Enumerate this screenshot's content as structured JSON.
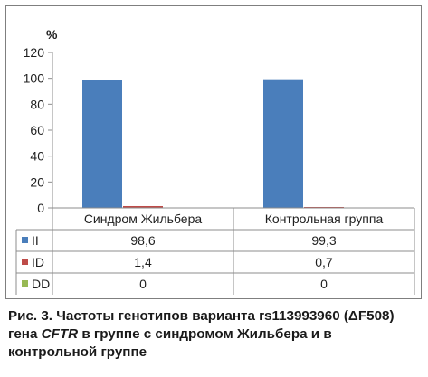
{
  "chart_data": {
    "type": "bar",
    "unit_label": "%",
    "categories": [
      "Синдром Жильбера",
      "Контрольная группа"
    ],
    "series": [
      {
        "name": "II",
        "values": [
          98.6,
          99.3
        ],
        "labels": [
          "98,6",
          "99,3"
        ],
        "color": "#4a7ebb"
      },
      {
        "name": "ID",
        "values": [
          1.4,
          0.7
        ],
        "labels": [
          "1,4",
          "0,7"
        ],
        "color": "#be4b48"
      },
      {
        "name": "DD",
        "values": [
          0,
          0
        ],
        "labels": [
          "0",
          "0"
        ],
        "color": "#98b954"
      }
    ],
    "ylim": [
      0,
      120
    ],
    "yticks": [
      0,
      20,
      40,
      60,
      80,
      100,
      120
    ],
    "grid": false,
    "legend": "data-table"
  },
  "caption": {
    "prefix": "Рис. 3. Частоты генотипов варианта rs113993960 (ΔF508) гена ",
    "gene": "CFTR",
    "suffix": " в группе с синдромом Жильбера и в контрольной группе"
  }
}
